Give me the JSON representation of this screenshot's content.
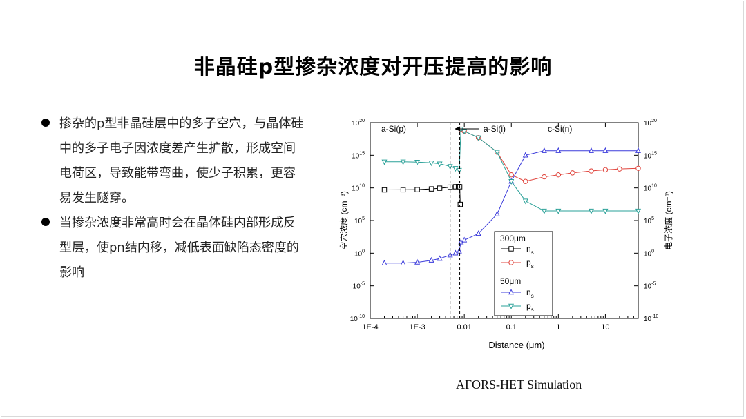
{
  "slide": {
    "title": "非晶硅p型掺杂浓度对开压提高的影响",
    "bullets": [
      "掺杂的p型非晶硅层中的多子空穴，与晶体硅中的多子电子因浓度差产生扩散，形成空间电荷区，导致能带弯曲，使少子积累，更容易发生隧穿。",
      "当掺杂浓度非常高时会在晶体硅内部形成反型层，使pn结内移，减低表面缺陷态密度的影响"
    ],
    "caption": "AFORS-HET Simulation"
  },
  "chart_data": {
    "type": "scatter",
    "title": "",
    "xlabel": "Distance (μm)",
    "ylabel_left": "空穴浓度 (cm⁻³)",
    "ylabel_right": "电子浓度 (cm⁻³)",
    "x_scale": "log",
    "y_scale": "log",
    "xlim": [
      0.0001,
      50
    ],
    "ylim": [
      1e-10,
      1e+20
    ],
    "x_tick_labels": [
      "1E-4",
      "1E-3",
      "0.01",
      "0.1",
      "1",
      "10"
    ],
    "x_ticks": [
      0.0001,
      0.001,
      0.01,
      0.1,
      1,
      10
    ],
    "y_tick_exponents": [
      -10,
      -5,
      0,
      5,
      10,
      15,
      20
    ],
    "region_labels": [
      "a-Si(p)",
      "a-Si(i)",
      "c-Si(n)"
    ],
    "region_boundaries": [
      0.005,
      0.008
    ],
    "legend": {
      "group1": "300μm",
      "group2": "50μm",
      "entries": [
        "n",
        "p",
        "n",
        "p"
      ],
      "subscript": "s"
    },
    "colors": {
      "g300_ns": "#000000",
      "g300_ps": "#e0443c",
      "g50_ns": "#3b3bdb",
      "g50_ps": "#2aa198"
    },
    "series": [
      {
        "name": "n",
        "group": "300μm",
        "marker": "square",
        "x": [
          0.0002,
          0.0005,
          0.001,
          0.002,
          0.003,
          0.005,
          0.0065,
          0.0075,
          0.008,
          0.0082
        ],
        "y": [
          5000000000.0,
          5200000000.0,
          5500000000.0,
          7000000000.0,
          9000000000.0,
          13000000000.0,
          15000000000.0,
          16000000000.0,
          15000000000.0,
          30000000.0
        ]
      },
      {
        "name": "p",
        "group": "300μm",
        "marker": "circle",
        "x": [
          0.0085,
          0.01,
          0.02,
          0.05,
          0.1,
          0.2,
          0.5,
          1,
          2,
          5,
          10,
          20,
          50
        ],
        "y": [
          1e+19,
          5e+18,
          5e+17,
          3000000000000000.0,
          1000000000000.0,
          100000000000.0,
          500000000000.0,
          1000000000000.0,
          2000000000000.0,
          4000000000000.0,
          6000000000000.0,
          8000000000000.0,
          10000000000000.0
        ]
      },
      {
        "name": "n",
        "group": "50μm",
        "marker": "triangle-up",
        "x": [
          0.0002,
          0.0005,
          0.001,
          0.002,
          0.003,
          0.005,
          0.0065,
          0.0078,
          0.0085,
          0.01,
          0.02,
          0.05,
          0.1,
          0.2,
          0.5,
          1,
          5,
          10,
          50
        ],
        "y": [
          0.03,
          0.03,
          0.04,
          0.08,
          0.15,
          0.5,
          1.0,
          2.0,
          50,
          100,
          1000.0,
          1000000.0,
          100000000000.0,
          1000000000000000.0,
          5000000000000000.0,
          5000000000000000.0,
          5000000000000000.0,
          5000000000000000.0,
          5000000000000000.0
        ]
      },
      {
        "name": "p",
        "group": "50μm",
        "marker": "triangle-down",
        "x": [
          0.0002,
          0.0005,
          0.001,
          0.002,
          0.003,
          0.005,
          0.0065,
          0.0078,
          0.0085,
          0.01,
          0.02,
          0.05,
          0.1,
          0.2,
          0.5,
          1,
          5,
          10,
          50
        ],
        "y": [
          100000000000000.0,
          100000000000000.0,
          90000000000000.0,
          70000000000000.0,
          50000000000000.0,
          20000000000000.0,
          10000000000000.0,
          5000000000000.0,
          1e+19,
          5e+18,
          5e+17,
          3000000000000000.0,
          100000000000.0,
          100000000.0,
          3000000.0,
          3000000.0,
          3000000.0,
          3000000.0,
          3000000.0
        ]
      }
    ]
  }
}
